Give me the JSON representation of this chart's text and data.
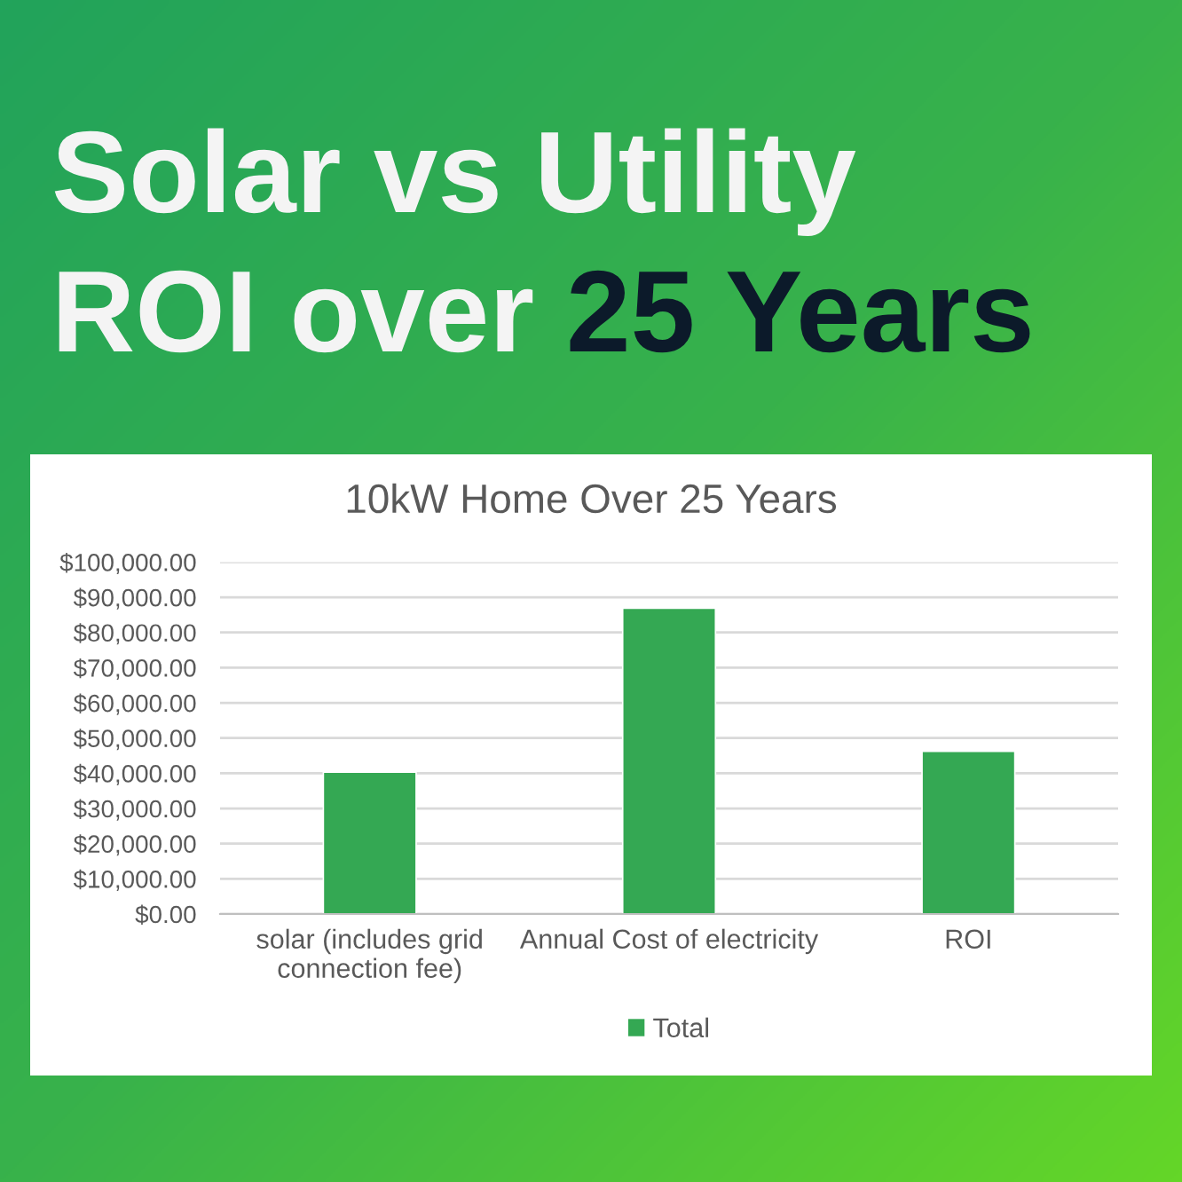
{
  "chart_data": {
    "type": "bar",
    "title": "Solar vs Utility ROI over 25 Years",
    "subtitle": "10kW Home Over 25 Years",
    "categories": [
      "solar (includes grid connection fee)",
      "Annual Cost of electricity",
      "ROI"
    ],
    "series": [
      {
        "name": "Total",
        "color": "#34a853",
        "values": [
          40300,
          86900,
          46200
        ]
      }
    ],
    "ylim": [
      0,
      100000
    ],
    "yticks": [
      {
        "value": 0,
        "label": "$0.00"
      },
      {
        "value": 10000,
        "label": "$10,000.00"
      },
      {
        "value": 20000,
        "label": "$20,000.00"
      },
      {
        "value": 30000,
        "label": "$30,000.00"
      },
      {
        "value": 40000,
        "label": "$40,000.00"
      },
      {
        "value": 50000,
        "label": "$50,000.00"
      },
      {
        "value": 60000,
        "label": "$60,000.00"
      },
      {
        "value": 70000,
        "label": "$70,000.00"
      },
      {
        "value": 80000,
        "label": "$80,000.00"
      },
      {
        "value": 90000,
        "label": "$90,000.00"
      },
      {
        "value": 100000,
        "label": "$100,000.00"
      }
    ],
    "grid": "y",
    "legend": "bottom"
  }
}
